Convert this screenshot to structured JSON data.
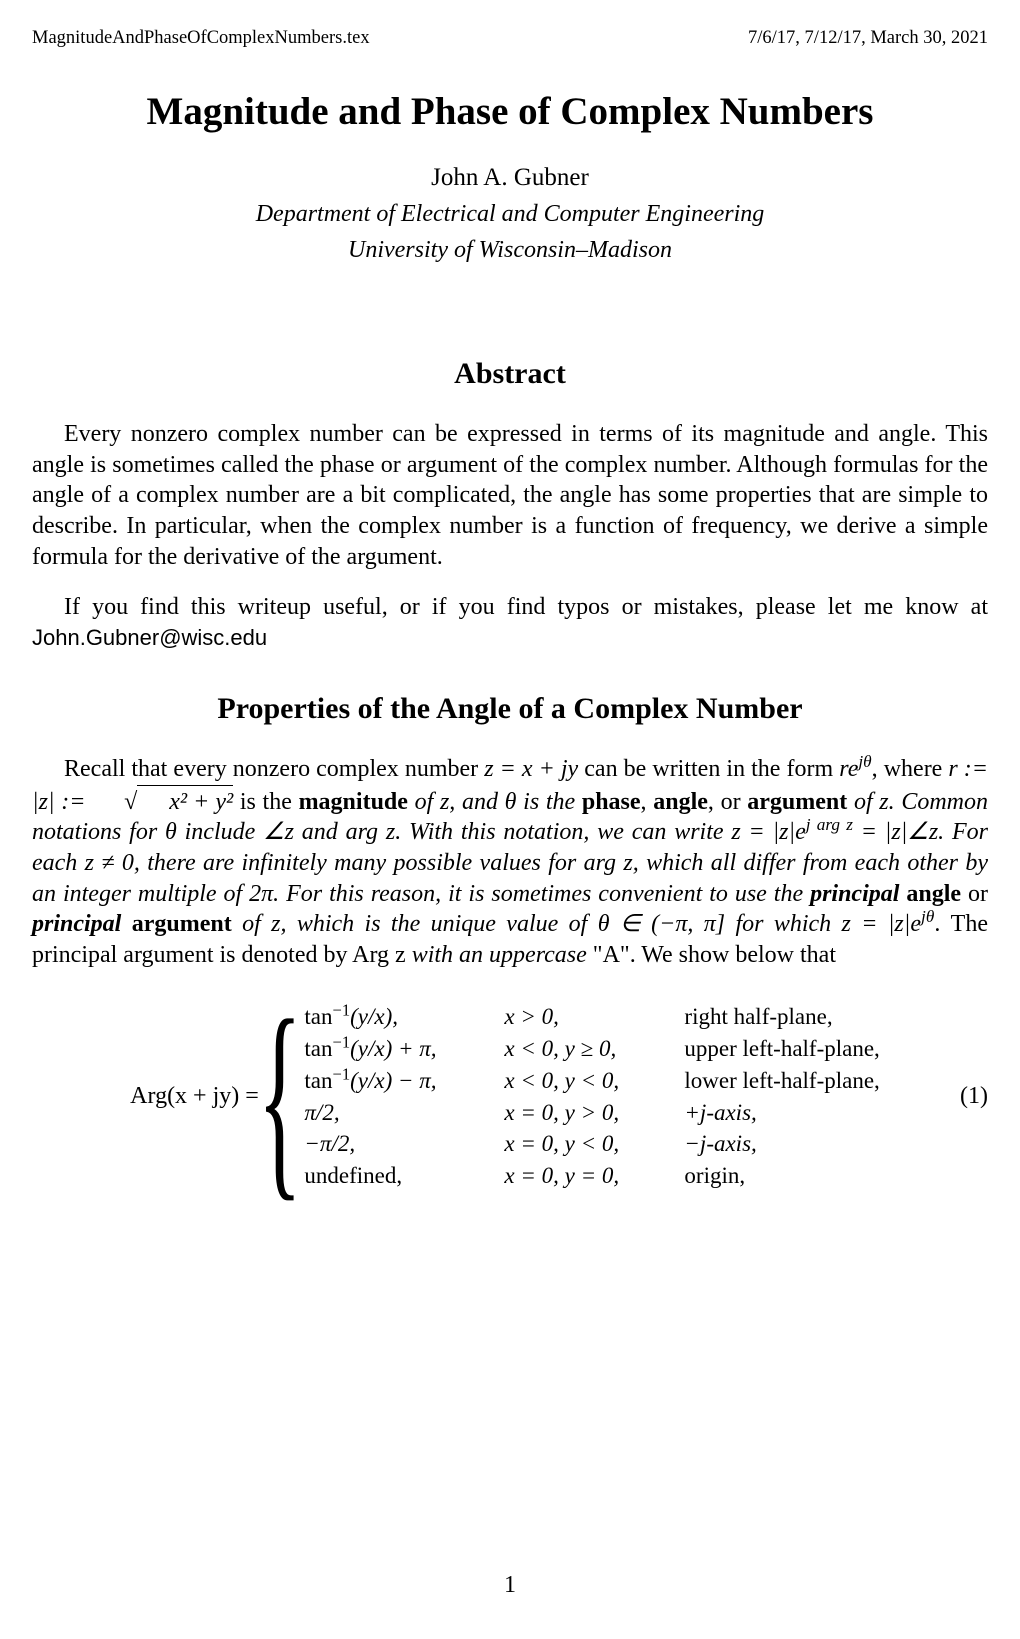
{
  "header": {
    "filename": "MagnitudeAndPhaseOfComplexNumbers.tex",
    "dates": "7/6/17, 7/12/17, March 30, 2021"
  },
  "title": "Magnitude and Phase of Complex Numbers",
  "author": "John A. Gubner",
  "affiliation1": "Department of Electrical and Computer Engineering",
  "affiliation2": "University of Wisconsin–Madison",
  "abstract_heading": "Abstract",
  "abstract_para1": "Every nonzero complex number can be expressed in terms of its magnitude and angle. This angle is sometimes called the phase or argument of the complex number. Although formulas for the angle of a complex number are a bit complicated, the angle has some properties that are simple to describe. In particular, when the complex number is a function of frequency, we derive a simple formula for the derivative of the argument.",
  "abstract_para2_prefix": "If you find this writeup useful, or if you find typos or mistakes, please let me know at ",
  "email": "John.Gubner@wisc.edu",
  "section_heading": "Properties of the Angle of a Complex Number",
  "body_text": {
    "recall_prefix": "Recall that every nonzero complex number ",
    "z_eq": "z = x + jy",
    "can_be_written": " can be written in the form ",
    "re_form": "re",
    "jtheta": "jθ",
    "where_r": ", where ",
    "r_def": "r := |z| := ",
    "sqrt_content": "x² + y²",
    "is_the": " is the ",
    "magnitude": "magnitude",
    "of_z_and": " of z, and θ is the ",
    "phase": "phase",
    "angle": "angle",
    "or": ", or ",
    "argument": "argument",
    "of_z_common": " of z. Common notations for θ include ∠z and arg z. With this notation, we can write ",
    "z_forms": "z = |z|e",
    "jargz": "j arg z",
    "eq_angle": " = |z|∠z",
    "for_each": ". For each z ≠ 0, there are infinitely many possible values for arg z, which all differ from each other by an integer multiple of 2π. For this reason, it is sometimes convenient to use the ",
    "principal1": "principal",
    "angle_or": " angle",
    "or2": " or ",
    "principal2": "principal",
    "argument2": " argument",
    "of_z_which": " of z, which is the ",
    "unique": "unique",
    "value_of": " value of θ ∈ (−π, π] for which ",
    "z_eq2": "z = |z|e",
    "jtheta2": "jθ",
    "principal_denoted": ". The principal argument is denoted by Arg z ",
    "with_upper": "with an uppercase",
    "A_show": " \"A\". We show below that"
  },
  "equation": {
    "lhs": "Arg(x + jy) = ",
    "cases": [
      {
        "formula_a": "tan",
        "formula_sup": "−1",
        "formula_b": "(y/x),",
        "cond": "x > 0,",
        "region": "right half-plane,"
      },
      {
        "formula_a": "tan",
        "formula_sup": "−1",
        "formula_b": "(y/x) + π,",
        "cond": "x < 0, y ≥ 0,",
        "region": "upper left-half-plane,"
      },
      {
        "formula_a": "tan",
        "formula_sup": "−1",
        "formula_b": "(y/x) − π,",
        "cond": "x < 0, y < 0,",
        "region": "lower left-half-plane,"
      },
      {
        "formula_a": "π/2,",
        "formula_sup": "",
        "formula_b": "",
        "cond": "x = 0, y > 0,",
        "region": "+j-axis,"
      },
      {
        "formula_a": "−π/2,",
        "formula_sup": "",
        "formula_b": "",
        "cond": "x = 0, y < 0,",
        "region": "−j-axis,"
      },
      {
        "formula_a": "undefined,",
        "formula_sup": "",
        "formula_b": "",
        "cond": "x = 0, y = 0,",
        "region": "origin,"
      }
    ],
    "number": "(1)"
  },
  "page_number": "1"
}
